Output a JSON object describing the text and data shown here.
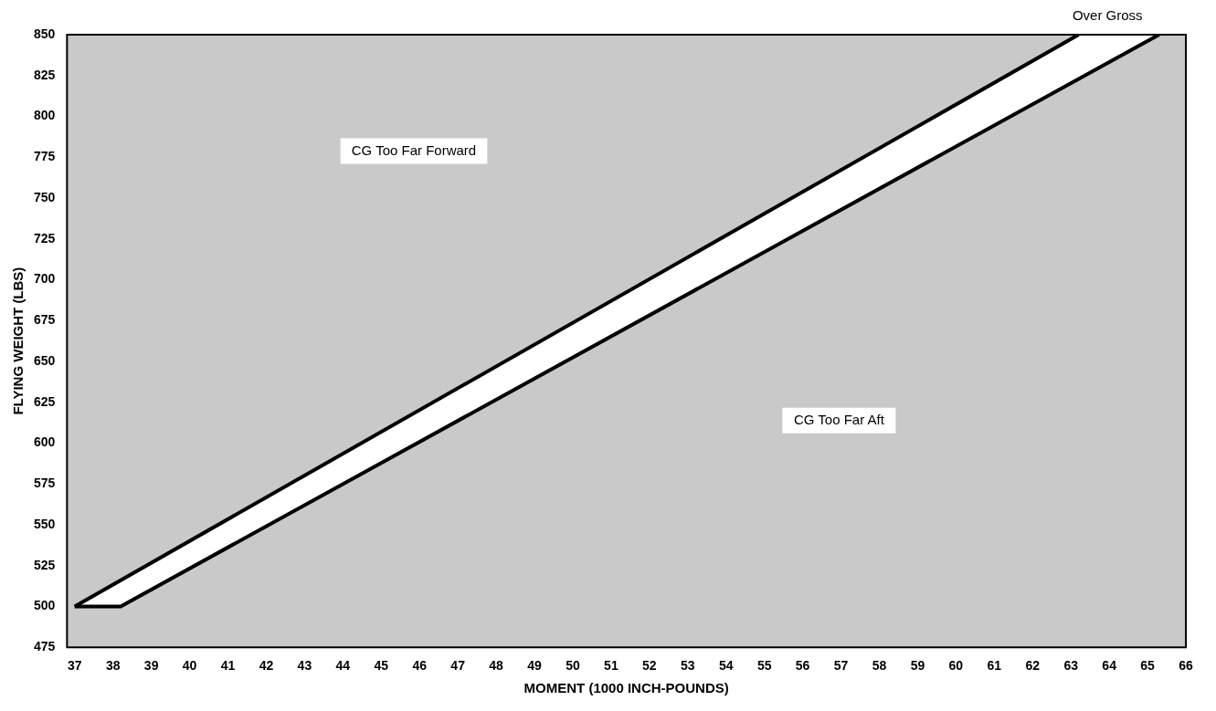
{
  "chart_data": {
    "type": "line",
    "xlabel": "MOMENT (1000 INCH-POUNDS)",
    "ylabel": "FLYING WEIGHT (LBS)",
    "xlim": [
      36.8,
      66
    ],
    "ylim": [
      475,
      850
    ],
    "xticks": [
      37,
      38,
      39,
      40,
      41,
      42,
      43,
      44,
      45,
      46,
      47,
      48,
      49,
      50,
      51,
      52,
      53,
      54,
      55,
      56,
      57,
      58,
      59,
      60,
      61,
      62,
      63,
      64,
      65,
      66
    ],
    "yticks": [
      475,
      500,
      525,
      550,
      575,
      600,
      625,
      650,
      675,
      700,
      725,
      750,
      775,
      800,
      825,
      850
    ],
    "grid": false,
    "legend": false,
    "bands": [
      {
        "axis": "y",
        "from": 475,
        "to": 850,
        "color": "#c9c9c9"
      }
    ],
    "series": [
      {
        "color": "#000000",
        "x": [
          37,
          38.2,
          65.3
        ],
        "values": [
          500,
          500,
          850
        ]
      },
      {
        "color": "#000000",
        "x": [
          37,
          63.2
        ],
        "values": [
          500,
          850
        ]
      }
    ],
    "annotations": [
      "CG Too Far Aft",
      "CG Too Far Forward",
      "Over Gross"
    ]
  }
}
